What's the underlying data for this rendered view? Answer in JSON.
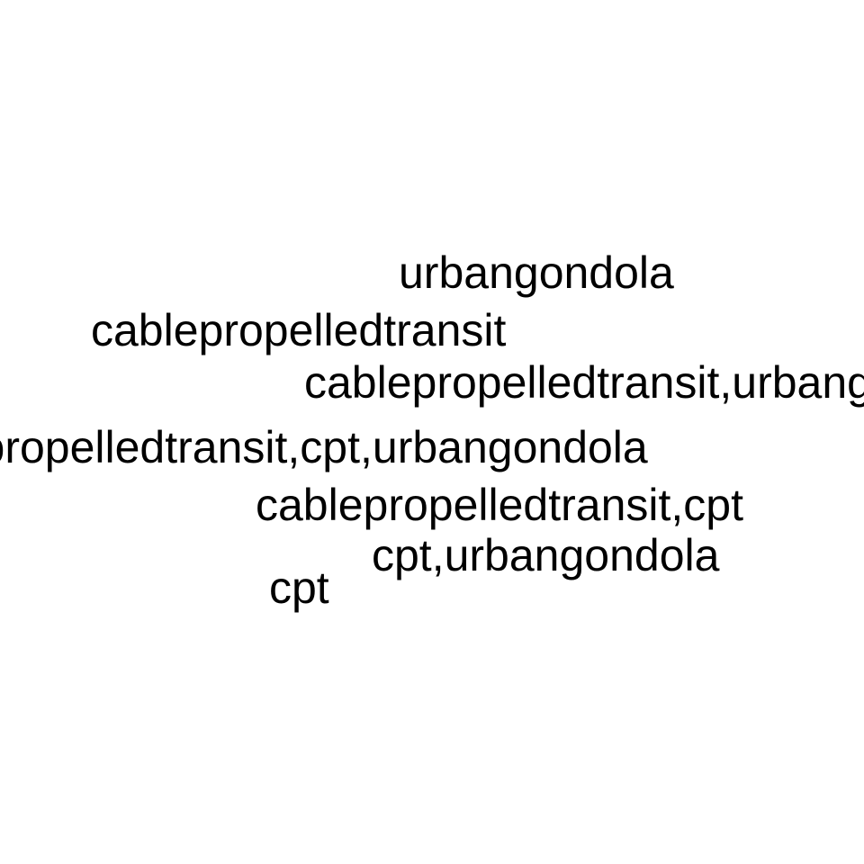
{
  "words": [
    "urbangondola",
    "cablepropelledtransit",
    "cablepropelledtransit,urbangondola",
    "cablepropelledtransit,cpt,urbangondola",
    "cablepropelledtransit,cpt",
    "cpt,urbangondola",
    "cpt"
  ],
  "colors": {
    "background": "#ffffff",
    "text": "#000000"
  }
}
